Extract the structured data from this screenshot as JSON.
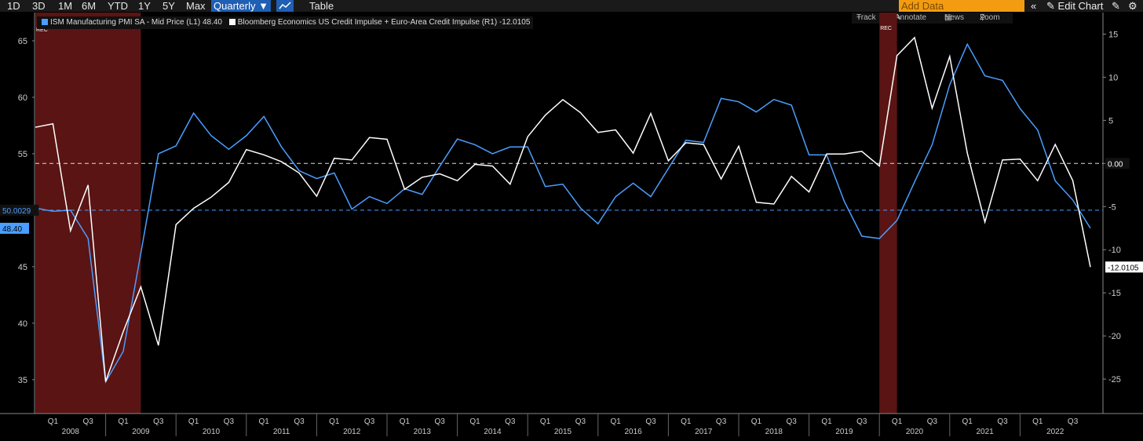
{
  "toolbar": {
    "ranges": [
      "1D",
      "3D",
      "1M",
      "6M",
      "YTD",
      "1Y",
      "5Y",
      "Max"
    ],
    "frequency": "Quarterly ▼",
    "table_label": "Table",
    "add_data_placeholder": "Add Data",
    "edit_chart_label": "Edit Chart"
  },
  "tools": {
    "track": "Track",
    "annotate": "Annotate",
    "news": "News",
    "zoom": "Zoom"
  },
  "colors": {
    "pmi": "#4a9eff",
    "impulse": "#ffffff",
    "recession": "#5a1414",
    "active": "#1f5fb4"
  },
  "chart_data": {
    "type": "line",
    "series": [
      {
        "name": "ISM Manufacturing PMI SA - Mid Price (L1) 48.40",
        "axis": "left",
        "last_label": "48.40",
        "values": [
          50.2,
          49.9,
          50.0,
          47.5,
          34.8,
          37.5,
          46.2,
          55.0,
          55.7,
          58.6,
          56.6,
          55.4,
          56.6,
          58.3,
          55.6,
          53.5,
          52.8,
          53.3,
          50.1,
          51.2,
          50.6,
          51.9,
          51.4,
          53.9,
          56.3,
          55.8,
          55.0,
          55.6,
          55.6,
          52.1,
          52.3,
          50.2,
          48.8,
          51.2,
          52.4,
          51.2,
          53.7,
          56.2,
          56.0,
          59.9,
          59.6,
          58.7,
          59.8,
          59.3,
          54.9,
          54.9,
          50.8,
          47.7,
          47.5,
          49.1,
          52.5,
          55.8,
          61.1,
          64.7,
          61.9,
          61.5,
          59.0,
          57.1,
          52.6,
          50.9,
          48.4
        ]
      },
      {
        "name": "Bloomberg Economics US Credit Impulse + Euro-Area Credit Impulse (R1) -12.0105",
        "axis": "right",
        "last_label": "-12.0105",
        "values": [
          4.2,
          4.6,
          -7.8,
          -2.5,
          -25.3,
          -19.5,
          -14.3,
          -21.1,
          -7.1,
          -5.2,
          -3.9,
          -2.2,
          1.6,
          1.0,
          0.2,
          -1.1,
          -3.8,
          0.6,
          0.4,
          3.0,
          2.8,
          -3.0,
          -1.6,
          -1.2,
          -2.0,
          -0.1,
          -0.3,
          -2.4,
          3.1,
          5.6,
          7.4,
          5.9,
          3.6,
          3.9,
          1.2,
          5.8,
          0.3,
          2.4,
          2.2,
          -1.8,
          2.0,
          -4.5,
          -4.7,
          -1.5,
          -3.3,
          1.1,
          1.1,
          1.4,
          -0.3,
          12.5,
          14.6,
          6.4,
          12.4,
          1.2,
          -6.8,
          0.4,
          0.5,
          -2.0,
          2.2,
          -2.0,
          -12.0105
        ]
      }
    ],
    "x_labels": [
      {
        "i": 1,
        "t": "Q1"
      },
      {
        "i": 3,
        "t": "Q3"
      },
      {
        "i": 5,
        "t": "Q1"
      },
      {
        "i": 7,
        "t": "Q3"
      },
      {
        "i": 9,
        "t": "Q1"
      },
      {
        "i": 11,
        "t": "Q3"
      },
      {
        "i": 13,
        "t": "Q1"
      },
      {
        "i": 15,
        "t": "Q3"
      },
      {
        "i": 17,
        "t": "Q1"
      },
      {
        "i": 19,
        "t": "Q3"
      },
      {
        "i": 21,
        "t": "Q1"
      },
      {
        "i": 23,
        "t": "Q3"
      },
      {
        "i": 25,
        "t": "Q1"
      },
      {
        "i": 27,
        "t": "Q3"
      },
      {
        "i": 29,
        "t": "Q1"
      },
      {
        "i": 31,
        "t": "Q3"
      },
      {
        "i": 33,
        "t": "Q1"
      },
      {
        "i": 35,
        "t": "Q3"
      },
      {
        "i": 37,
        "t": "Q1"
      },
      {
        "i": 39,
        "t": "Q3"
      },
      {
        "i": 41,
        "t": "Q1"
      },
      {
        "i": 43,
        "t": "Q3"
      },
      {
        "i": 45,
        "t": "Q1"
      },
      {
        "i": 47,
        "t": "Q3"
      },
      {
        "i": 49,
        "t": "Q1"
      },
      {
        "i": 51,
        "t": "Q3"
      },
      {
        "i": 53,
        "t": "Q1"
      },
      {
        "i": 55,
        "t": "Q3"
      },
      {
        "i": 57,
        "t": "Q1"
      },
      {
        "i": 59,
        "t": "Q3"
      }
    ],
    "years": [
      "2008",
      "2009",
      "2010",
      "2011",
      "2012",
      "2013",
      "2014",
      "2015",
      "2016",
      "2017",
      "2018",
      "2019",
      "2020",
      "2021",
      "2022"
    ],
    "left_axis": {
      "ticks": [
        35,
        40,
        45,
        50,
        55,
        60,
        65
      ],
      "ylim": [
        32,
        67.5
      ],
      "ref": 50.0029,
      "ref_label": "50.0029"
    },
    "right_axis": {
      "ticks": [
        -25,
        -20,
        -15,
        -10,
        -5,
        0,
        5,
        10,
        15
      ],
      "ylim": [
        -29,
        17.5
      ],
      "ref": 0,
      "ref_label": "0.00"
    },
    "recessions": [
      [
        0,
        6
      ],
      [
        48,
        49
      ]
    ],
    "recession_marker": "REC"
  }
}
